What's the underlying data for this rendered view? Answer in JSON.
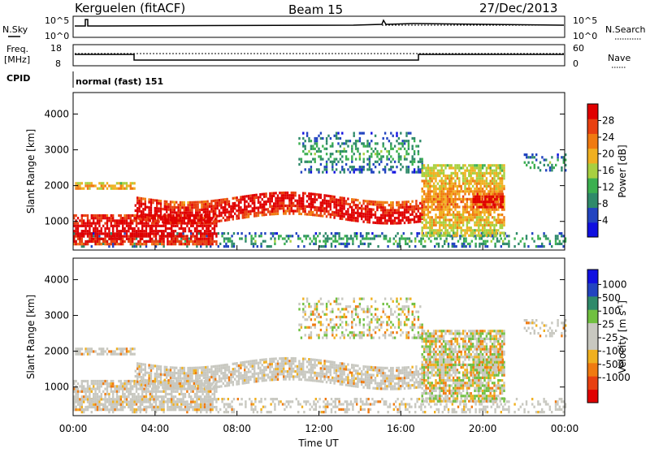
{
  "header": {
    "station": "Kerguelen (fitACF)",
    "beam": "Beam 15",
    "date": "27/Dec/2013"
  },
  "panels": {
    "nsky": {
      "label": "N.Sky",
      "right_label": "N.Search",
      "left_ticks": [
        "10^5",
        "10^0"
      ],
      "right_ticks": [
        "10^5",
        "10^0"
      ]
    },
    "freq": {
      "label_line1": "Freq.",
      "label_line2": "[MHz]",
      "right_label": "Nave",
      "left_ticks": [
        "18",
        "8"
      ],
      "right_ticks": [
        "60",
        "0"
      ]
    },
    "cpid": {
      "label": "CPID",
      "value": "normal (fast) 151"
    }
  },
  "colors": {
    "power": [
      "#1010e0",
      "#2244c0",
      "#2f8a6a",
      "#3cb050",
      "#a8d040",
      "#f0b020",
      "#f07a10",
      "#e84010",
      "#e00000"
    ],
    "velocity": [
      "#e00000",
      "#e84010",
      "#f07a10",
      "#f0b020",
      "#c8c8c0",
      "#c8c8c0",
      "#70c040",
      "#2f8a6a",
      "#2244c0",
      "#1010e0"
    ],
    "ground_scatter": "#c8c8c0"
  },
  "chart_data": [
    {
      "type": "heatmap",
      "name": "power",
      "ylabel": "Slant Range [km]",
      "xlabel": "",
      "y_ticks": [
        "1000",
        "2000",
        "3000",
        "4000"
      ],
      "ylim": [
        200,
        4600
      ],
      "xlim": [
        0,
        24
      ],
      "colorbar": {
        "label": "Power [dB]",
        "ticks": [
          "4",
          "8",
          "12",
          "16",
          "20",
          "24",
          "28"
        ],
        "range": [
          0,
          32
        ]
      },
      "features": [
        {
          "name": "near-range echoes",
          "t": [
            0,
            24
          ],
          "range_km": [
            300,
            700
          ],
          "level": "weak"
        },
        {
          "name": "early band",
          "t": [
            0,
            3
          ],
          "range_km": [
            1900,
            2100
          ],
          "level": "moderate"
        },
        {
          "name": "strong low band",
          "t": [
            0,
            7
          ],
          "range_km": [
            400,
            1200
          ],
          "level": "strong"
        },
        {
          "name": "main band",
          "t": [
            3,
            17
          ],
          "range_km": [
            1100,
            1700
          ],
          "level": "strong"
        },
        {
          "name": "high scatter",
          "t": [
            11,
            17
          ],
          "range_km": [
            2400,
            3500
          ],
          "level": "weak"
        },
        {
          "name": "late band",
          "t": [
            17,
            21
          ],
          "range_km": [
            600,
            2600
          ],
          "level": "moderate"
        },
        {
          "name": "evening patch",
          "t": [
            19.5,
            21
          ],
          "range_km": [
            1400,
            1800
          ],
          "level": "strong"
        },
        {
          "name": "late high",
          "t": [
            22,
            24
          ],
          "range_km": [
            2400,
            2900
          ],
          "level": "weak"
        }
      ]
    },
    {
      "type": "heatmap",
      "name": "velocity",
      "ylabel": "Slant Range [km]",
      "xlabel": "Time UT",
      "x_ticks": [
        "00:00",
        "04:00",
        "08:00",
        "12:00",
        "16:00",
        "20:00",
        "00:00"
      ],
      "y_ticks": [
        "1000",
        "2000",
        "3000",
        "4000"
      ],
      "ylim": [
        200,
        4600
      ],
      "xlim": [
        0,
        24
      ],
      "colorbar": {
        "label": "Velocity [m s",
        "label_sup": "-1",
        "label_end": "]",
        "ticks": [
          "1000",
          "500",
          "100",
          "25",
          "-25",
          "-100",
          "-500",
          "-1000"
        ]
      }
    }
  ]
}
